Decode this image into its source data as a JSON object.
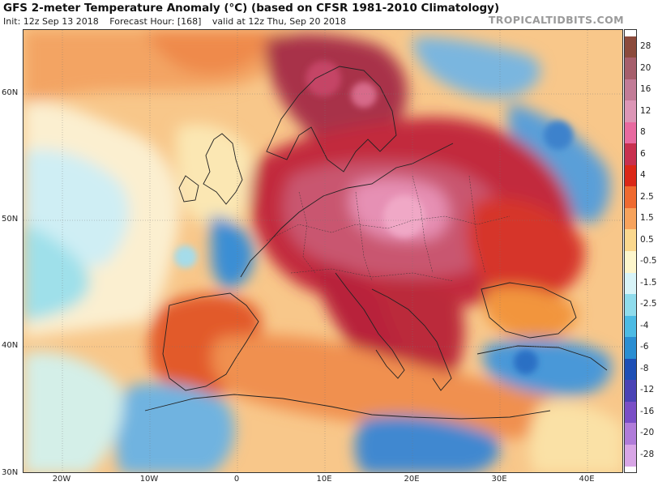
{
  "header": {
    "title": "GFS 2-meter Temperature Anomaly (°C) (based on CFSR 1981-2010 Climatology)",
    "init": "Init: 12z Sep 13 2018",
    "forecast_hour": "Forecast Hour: [168]",
    "valid": "valid at 12z Thu, Sep 20 2018",
    "brand": "TROPICALTIDBITS.COM"
  },
  "map": {
    "lat_labels": [
      "60N",
      "50N",
      "40N",
      "30N"
    ],
    "lon_labels": [
      "20W",
      "10W",
      "0",
      "10E",
      "20E",
      "30E",
      "40E"
    ]
  },
  "colorbar": {
    "labels": [
      "28",
      "20",
      "16",
      "12",
      "8",
      "6",
      "4",
      "2.5",
      "1.5",
      "0.5",
      "-0.5",
      "-1.5",
      "-2.5",
      "-4",
      "-6",
      "-8",
      "-12",
      "-16",
      "-20",
      "-28"
    ],
    "colors": [
      "#8c4b3c",
      "#a65f6c",
      "#c27c97",
      "#dc96b6",
      "#e86aa0",
      "#c8304f",
      "#db2818",
      "#ef6a30",
      "#f7a35c",
      "#fbd88e",
      "#fdf6cc",
      "#d8f4f8",
      "#8fdcec",
      "#4cbbe4",
      "#2a8ed2",
      "#1e4fb5",
      "#4a43b5",
      "#7a4fc6",
      "#b07cd9",
      "#d8a6e6"
    ]
  }
}
